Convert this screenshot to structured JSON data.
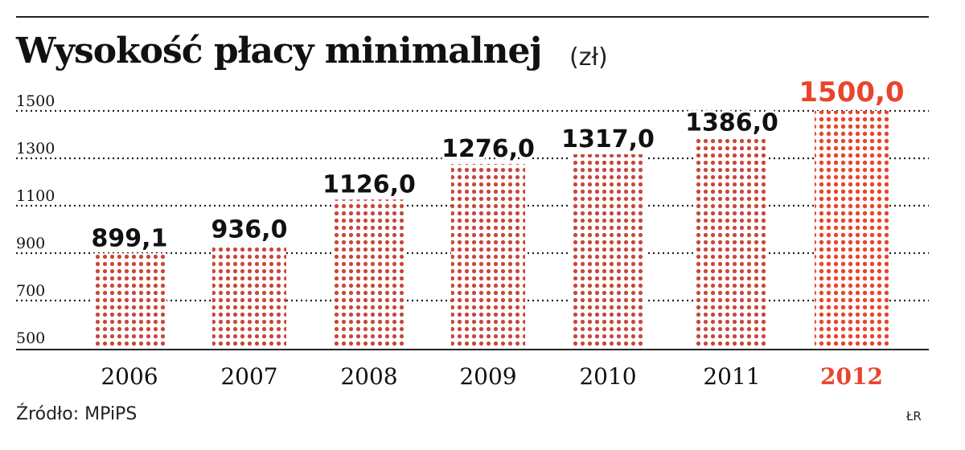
{
  "title": "Wysokość płacy minimalnej",
  "unit_label": "(zł)",
  "source": "Źródło: MPiPS",
  "credit": "ŁR",
  "colors": {
    "bar": "#c9473a",
    "highlight": "#e8452c",
    "text": "#111111",
    "grid": "#222222"
  },
  "chart_data": {
    "type": "bar",
    "title": "Wysokość płacy minimalnej",
    "ylabel": "(zł)",
    "xlabel": "",
    "categories": [
      "2006",
      "2007",
      "2008",
      "2009",
      "2010",
      "2011",
      "2012"
    ],
    "values": [
      899.1,
      936.0,
      1126.0,
      1276.0,
      1317.0,
      1386.0,
      1500.0
    ],
    "value_labels": [
      "899,1",
      "936,0",
      "1126,0",
      "1276,0",
      "1317,0",
      "1386,0",
      "1500,0"
    ],
    "yticks": [
      500,
      700,
      900,
      1100,
      1300,
      1500
    ],
    "ylim": [
      500,
      1500
    ],
    "grid": true,
    "highlight_category": "2012"
  }
}
